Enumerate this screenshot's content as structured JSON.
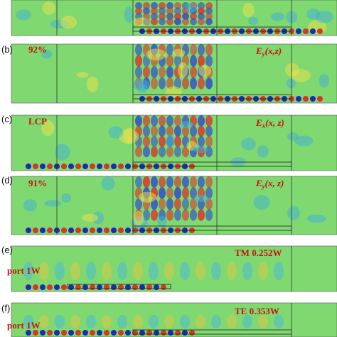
{
  "panels": [
    {
      "label": null,
      "note": null,
      "field": null
    },
    {
      "label": "(b)",
      "note": "92%",
      "field": {
        "symbol": "E",
        "sub": "y",
        "args": "(x,z)"
      }
    },
    {
      "label": "(c)",
      "note": "LCP",
      "field": {
        "symbol": "E",
        "sub": "x",
        "args": "(x, z)"
      }
    },
    {
      "label": "(d)",
      "note": "91%",
      "field": {
        "symbol": "E",
        "sub": "y",
        "args": "(x, z)"
      }
    },
    {
      "label": "(e)",
      "note": "port 1W",
      "field": "TM 0.252W"
    },
    {
      "label": "(f)",
      "note": "port 1W",
      "field": "TE 0.353W"
    }
  ]
}
